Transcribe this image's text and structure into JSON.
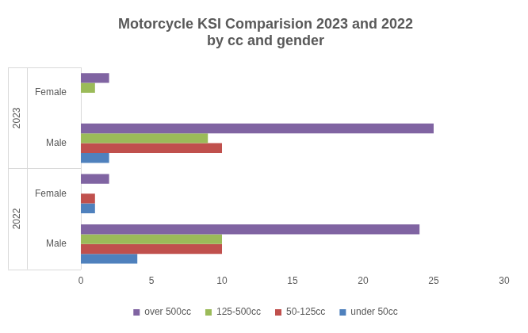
{
  "chart_data": {
    "type": "bar",
    "orientation": "horizontal",
    "title": [
      "Motorcycle KSI Comparision 2023 and 2022",
      "by cc and gender"
    ],
    "categories": [
      "Female",
      "Male",
      "Female",
      "Male"
    ],
    "category_groups": [
      {
        "label": "2023",
        "count": 2
      },
      {
        "label": "2022",
        "count": 2
      }
    ],
    "series": [
      {
        "name": "over 500cc",
        "color": "#8064a2",
        "values": [
          2,
          25,
          2,
          24
        ]
      },
      {
        "name": "125-500cc",
        "color": "#9bbb59",
        "values": [
          1,
          9,
          0,
          10
        ]
      },
      {
        "name": "50-125cc",
        "color": "#c0504d",
        "values": [
          0,
          10,
          1,
          10
        ]
      },
      {
        "name": "under 50cc",
        "color": "#4f81bd",
        "values": [
          0,
          2,
          1,
          4
        ]
      }
    ],
    "xlim": [
      0,
      30
    ],
    "xticks": [
      0,
      5,
      10,
      15,
      20,
      25,
      30
    ],
    "grid": false,
    "legend": "bottom",
    "stacked": false,
    "data_labels": false
  }
}
